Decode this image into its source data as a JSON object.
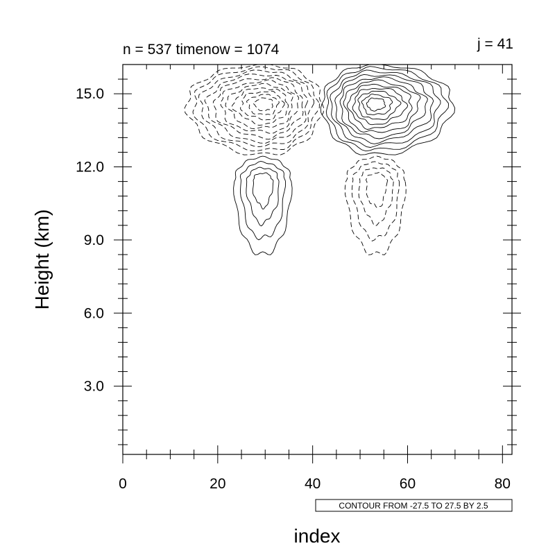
{
  "chart_data": {
    "type": "contour",
    "title_left": "n = 537 timenow = 1074",
    "title_right": "j = 41",
    "xlabel": "index",
    "ylabel": "Height (km)",
    "xlim": [
      0,
      82
    ],
    "ylim": [
      0.2,
      16.2
    ],
    "x_ticks": [
      {
        "value": 0,
        "label": "0"
      },
      {
        "value": 20,
        "label": "20"
      },
      {
        "value": 40,
        "label": "40"
      },
      {
        "value": 60,
        "label": "60"
      },
      {
        "value": 80,
        "label": "80"
      }
    ],
    "y_ticks": [
      {
        "value": 3,
        "label": "3.0"
      },
      {
        "value": 6,
        "label": "6.0"
      },
      {
        "value": 9,
        "label": "9.0"
      },
      {
        "value": 12,
        "label": "12.0"
      },
      {
        "value": 15,
        "label": "15.0"
      }
    ],
    "contour_info": "CONTOUR FROM -27.5 TO 27.5 BY 2.5",
    "contour_levels": {
      "min": -27.5,
      "max": 27.5,
      "step": 2.5
    },
    "features": [
      {
        "sign": "negative",
        "style": "dashed",
        "center": [
          30,
          14.6
        ],
        "x_range": [
          13.5,
          42
        ],
        "y_range": [
          12.5,
          16.2
        ],
        "levels": 11
      },
      {
        "sign": "positive",
        "style": "solid",
        "center": [
          53,
          14.6
        ],
        "x_range": [
          42,
          69.5
        ],
        "y_range": [
          12.5,
          16.2
        ],
        "levels": 11
      },
      {
        "sign": "positive",
        "style": "solid",
        "center": [
          29.5,
          11.4
        ],
        "x_range": [
          23.5,
          35.5
        ],
        "y_range": [
          8.4,
          12.4
        ],
        "levels": 4
      },
      {
        "sign": "negative",
        "style": "dashed",
        "center": [
          53.5,
          11.4
        ],
        "x_range": [
          47,
          59.5
        ],
        "y_range": [
          8.4,
          12.4
        ],
        "levels": 4
      }
    ]
  }
}
